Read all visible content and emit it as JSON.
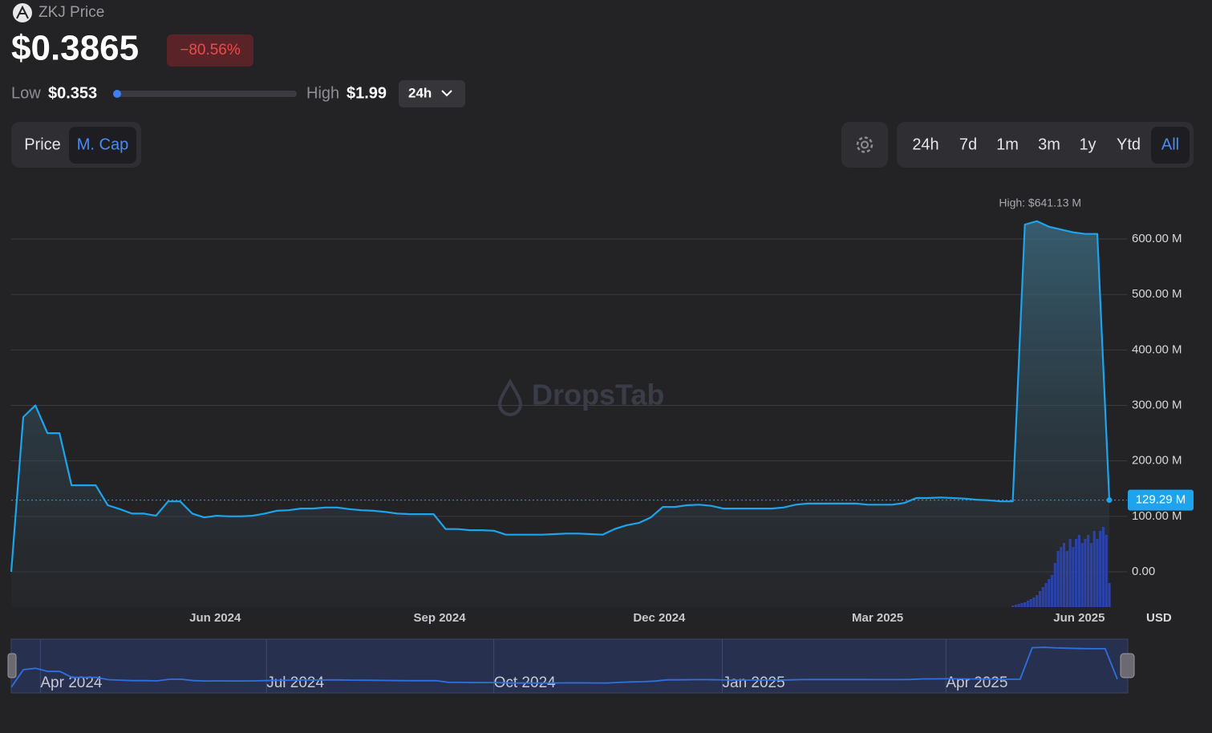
{
  "header": {
    "title": "ZKJ Price",
    "price": "$0.3865",
    "change": "−80.56%",
    "low_label": "Low",
    "low": "$0.353",
    "high_label": "High",
    "high": "$1.99",
    "period": "24h"
  },
  "toggle": [
    "Price",
    "M. Cap"
  ],
  "toggle_active": 1,
  "ranges": [
    "24h",
    "7d",
    "1m",
    "3m",
    "1y",
    "Ytd",
    "All"
  ],
  "range_active": 6,
  "watermark": "DropsTab",
  "chart_data": {
    "type": "line",
    "series": [
      {
        "color": "#1ea4ec",
        "values": [
          0,
          279,
          300,
          250,
          250,
          156,
          156,
          156,
          120,
          113,
          105,
          105,
          101,
          127,
          127,
          105,
          98,
          101,
          100,
          100,
          101,
          105,
          110,
          111,
          114,
          114,
          116,
          116,
          113,
          111,
          110,
          108,
          105,
          104,
          104,
          104,
          77,
          77,
          75,
          75,
          74,
          67,
          67,
          67,
          67,
          68,
          69,
          69,
          68,
          67,
          77,
          84,
          88,
          98,
          117,
          117,
          120,
          121,
          119,
          114,
          114,
          114,
          114,
          114,
          116,
          121,
          123,
          123,
          123,
          123,
          123,
          121,
          121,
          121,
          124,
          133,
          133,
          134,
          133,
          132,
          130,
          129,
          127,
          127,
          626,
          632,
          622,
          617,
          612,
          609,
          609,
          129.29
        ]
      },
      {
        "type": "bar",
        "axis": "y2",
        "color": "#2b42a8",
        "x": [
          83,
          83.25,
          83.5,
          83.75,
          84,
          84.25,
          84.5,
          84.75,
          85,
          85.25,
          85.5,
          85.75,
          86,
          86.25,
          86.5,
          86.75,
          87,
          87.25,
          87.5,
          87.75,
          88,
          88.25,
          88.5,
          88.75,
          89,
          89.25,
          89.5,
          89.75,
          90,
          90.25,
          90.5,
          90.75,
          91
        ],
        "values": [
          2,
          3,
          4,
          5,
          6,
          8,
          10,
          12,
          15,
          20,
          25,
          30,
          35,
          40,
          55,
          70,
          75,
          80,
          70,
          85,
          75,
          85,
          90,
          80,
          85,
          90,
          80,
          95,
          85,
          95,
          100,
          90,
          30
        ]
      }
    ],
    "xlim": [
      0,
      91
    ],
    "xticks": [
      {
        "value": 16.9,
        "label": "Jun 2024"
      },
      {
        "value": 35.5,
        "label": "Sep 2024"
      },
      {
        "value": 53.7,
        "label": "Dec 2024"
      },
      {
        "value": 71.8,
        "label": "Mar 2025"
      },
      {
        "value": 88.5,
        "label": "Jun 2025"
      }
    ],
    "ylim": [
      -63.6,
      683.8
    ],
    "yticks": [
      {
        "value": 0,
        "label": "0.00"
      },
      {
        "value": 100,
        "label": "100.00 M"
      },
      {
        "value": 200,
        "label": "200.00 M"
      },
      {
        "value": 300,
        "label": "300.00 M"
      },
      {
        "value": 400,
        "label": "400.00 M"
      },
      {
        "value": 500,
        "label": "500.00 M"
      },
      {
        "value": 600,
        "label": "600.00 M"
      }
    ],
    "y2lim": [
      0,
      100
    ],
    "grid": true,
    "axis_unit": "USD",
    "annotations": [
      {
        "text": "High: $641.13 M"
      }
    ],
    "last_value_label": "129.29 M",
    "navigator": {
      "xticks": [
        {
          "value": 2.4,
          "label": "Apr 2024"
        },
        {
          "value": 21.0,
          "label": "Jul 2024"
        },
        {
          "value": 39.7,
          "label": "Oct 2024"
        },
        {
          "value": 58.5,
          "label": "Jan 2025"
        },
        {
          "value": 76.9,
          "label": "Apr 2025"
        }
      ]
    }
  }
}
